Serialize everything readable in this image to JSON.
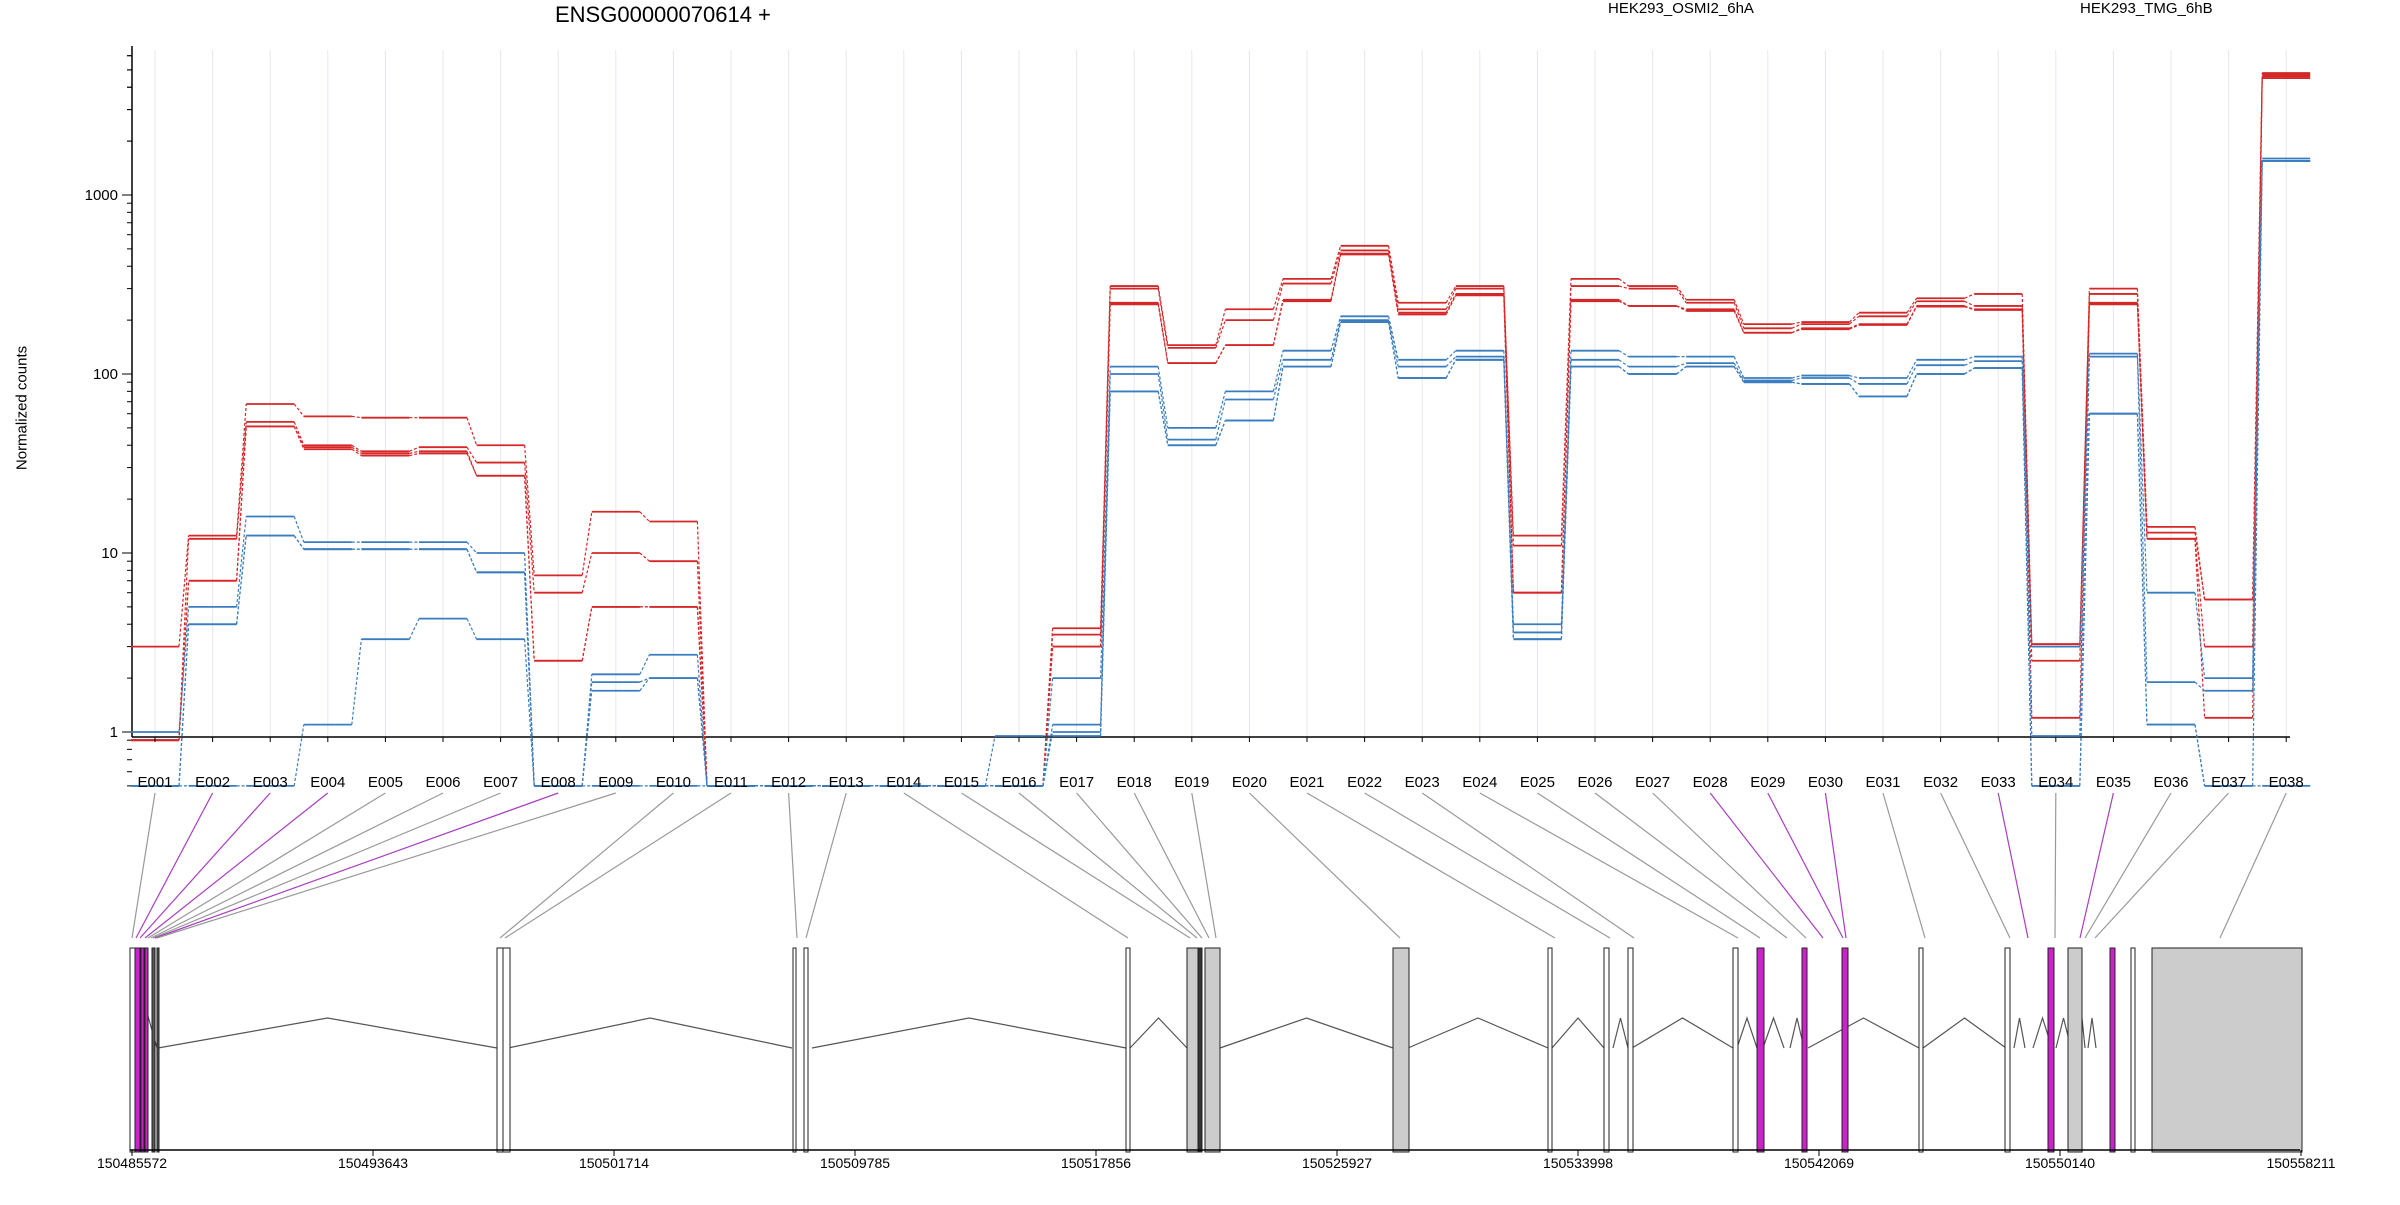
{
  "chart_data": {
    "type": "line",
    "title": "ENSG00000070614 +",
    "ylabel": "Normalized counts",
    "yscale": "log",
    "ylim": [
      0.5,
      6000
    ],
    "yticks": [
      "1",
      "10",
      "100",
      "1000"
    ],
    "grid": "vertical lines at exon centers",
    "categories": [
      "E001",
      "E002",
      "E003",
      "E004",
      "E005",
      "E006",
      "E007",
      "E008",
      "E009",
      "E010",
      "E011",
      "E012",
      "E013",
      "E014",
      "E015",
      "E016",
      "E017",
      "E018",
      "E019",
      "E020",
      "E021",
      "E022",
      "E023",
      "E024",
      "E025",
      "E026",
      "E027",
      "E028",
      "E029",
      "E030",
      "E031",
      "E032",
      "E033",
      "E034",
      "E035",
      "E036",
      "E037",
      "E038"
    ],
    "legend": [
      {
        "label": "HEK293_OSMI2_6hA",
        "color": "#d62728"
      },
      {
        "label": "HEK293_TMG_6hB",
        "color": "#3a7dbf"
      }
    ],
    "series": [
      {
        "group": 0,
        "color": "#d62728",
        "values": [
          3.0,
          12.5,
          68,
          58,
          57,
          57,
          40,
          7.5,
          17,
          15,
          0.5,
          0.5,
          0.5,
          0.5,
          0.5,
          0.5,
          3.8,
          310,
          145,
          230,
          340,
          520,
          250,
          310,
          12.5,
          340,
          310,
          260,
          190,
          195,
          220,
          265,
          280,
          3.1,
          300,
          14,
          5.5,
          4800
        ]
      },
      {
        "group": 0,
        "color": "#d62728",
        "values": [
          0.9,
          12.0,
          54,
          40,
          37,
          39,
          32,
          6.0,
          10,
          9,
          0.5,
          0.5,
          0.5,
          0.5,
          0.5,
          0.5,
          3.5,
          300,
          140,
          200,
          320,
          490,
          230,
          300,
          11,
          310,
          300,
          250,
          180,
          190,
          210,
          255,
          240,
          3.0,
          280,
          13,
          5.5,
          4700
        ]
      },
      {
        "group": 0,
        "color": "#d62728",
        "values": [
          0.9,
          7.0,
          51,
          39,
          36,
          37,
          27,
          2.5,
          5,
          5,
          0.5,
          0.5,
          0.5,
          0.5,
          0.5,
          0.5,
          3.0,
          250,
          115,
          145,
          260,
          470,
          220,
          280,
          6,
          260,
          240,
          230,
          170,
          180,
          190,
          240,
          230,
          2.5,
          250,
          12,
          3.0,
          4600
        ]
      },
      {
        "group": 0,
        "color": "#d62728",
        "values": [
          0.9,
          7.0,
          51,
          38,
          35,
          36,
          27,
          2.5,
          5,
          5,
          0.5,
          0.5,
          0.5,
          0.5,
          0.5,
          0.5,
          3.0,
          245,
          115,
          145,
          255,
          465,
          215,
          275,
          6,
          255,
          240,
          225,
          170,
          178,
          188,
          238,
          228,
          1.2,
          245,
          12,
          1.2,
          4500
        ]
      },
      {
        "group": 1,
        "color": "#3a7dbf",
        "values": [
          1.0,
          5.0,
          16,
          11.5,
          11.5,
          11.5,
          10,
          0.5,
          2.1,
          2.7,
          0.5,
          0.5,
          0.5,
          0.5,
          0.5,
          0.5,
          2.0,
          110,
          50,
          80,
          135,
          210,
          120,
          135,
          4.0,
          135,
          125,
          125,
          95,
          98,
          95,
          120,
          125,
          3.0,
          130,
          6.0,
          2.0,
          1600
        ]
      },
      {
        "group": 1,
        "color": "#3a7dbf",
        "values": [
          0.5,
          4.0,
          12.5,
          10.5,
          10.5,
          10.5,
          7.8,
          0.5,
          1.9,
          2.0,
          0.5,
          0.5,
          0.5,
          0.5,
          0.5,
          0.5,
          1.1,
          100,
          43,
          72,
          120,
          200,
          110,
          125,
          3.6,
          120,
          110,
          115,
          92,
          95,
          88,
          112,
          118,
          0.95,
          125,
          1.9,
          1.7,
          1550
        ]
      },
      {
        "group": 1,
        "color": "#3a7dbf",
        "values": [
          0.5,
          4.0,
          12.5,
          10.5,
          10.5,
          10.5,
          7.8,
          0.5,
          1.7,
          2.0,
          0.5,
          0.5,
          0.5,
          0.5,
          0.5,
          0.5,
          1.0,
          80,
          40,
          55,
          110,
          195,
          95,
          120,
          3.3,
          110,
          100,
          110,
          90,
          88,
          75,
          100,
          108,
          0.5,
          60,
          1.1,
          0.5,
          1550
        ]
      },
      {
        "group": 1,
        "color": "#3a7dbf",
        "values": [
          0.5,
          0.5,
          0.5,
          1.1,
          3.3,
          4.3,
          3.3,
          0.5,
          0.5,
          0.5,
          0.5,
          0.5,
          0.5,
          0.5,
          0.5,
          0.95,
          0.95,
          80,
          40,
          55,
          110,
          195,
          95,
          120,
          3.3,
          110,
          100,
          110,
          90,
          88,
          75,
          100,
          108,
          0.5,
          60,
          1.1,
          0.5,
          0.5
        ]
      }
    ],
    "gene_model": {
      "coordinate_ticks": [
        "150485572",
        "150493643",
        "150501714",
        "150509785",
        "150517856",
        "150525927",
        "150533998",
        "150542069",
        "150550140",
        "150558211"
      ],
      "highlighted_exons": [
        "E002",
        "E003",
        "E004",
        "E008",
        "E028",
        "E029",
        "E030",
        "E033",
        "E035"
      ]
    }
  }
}
